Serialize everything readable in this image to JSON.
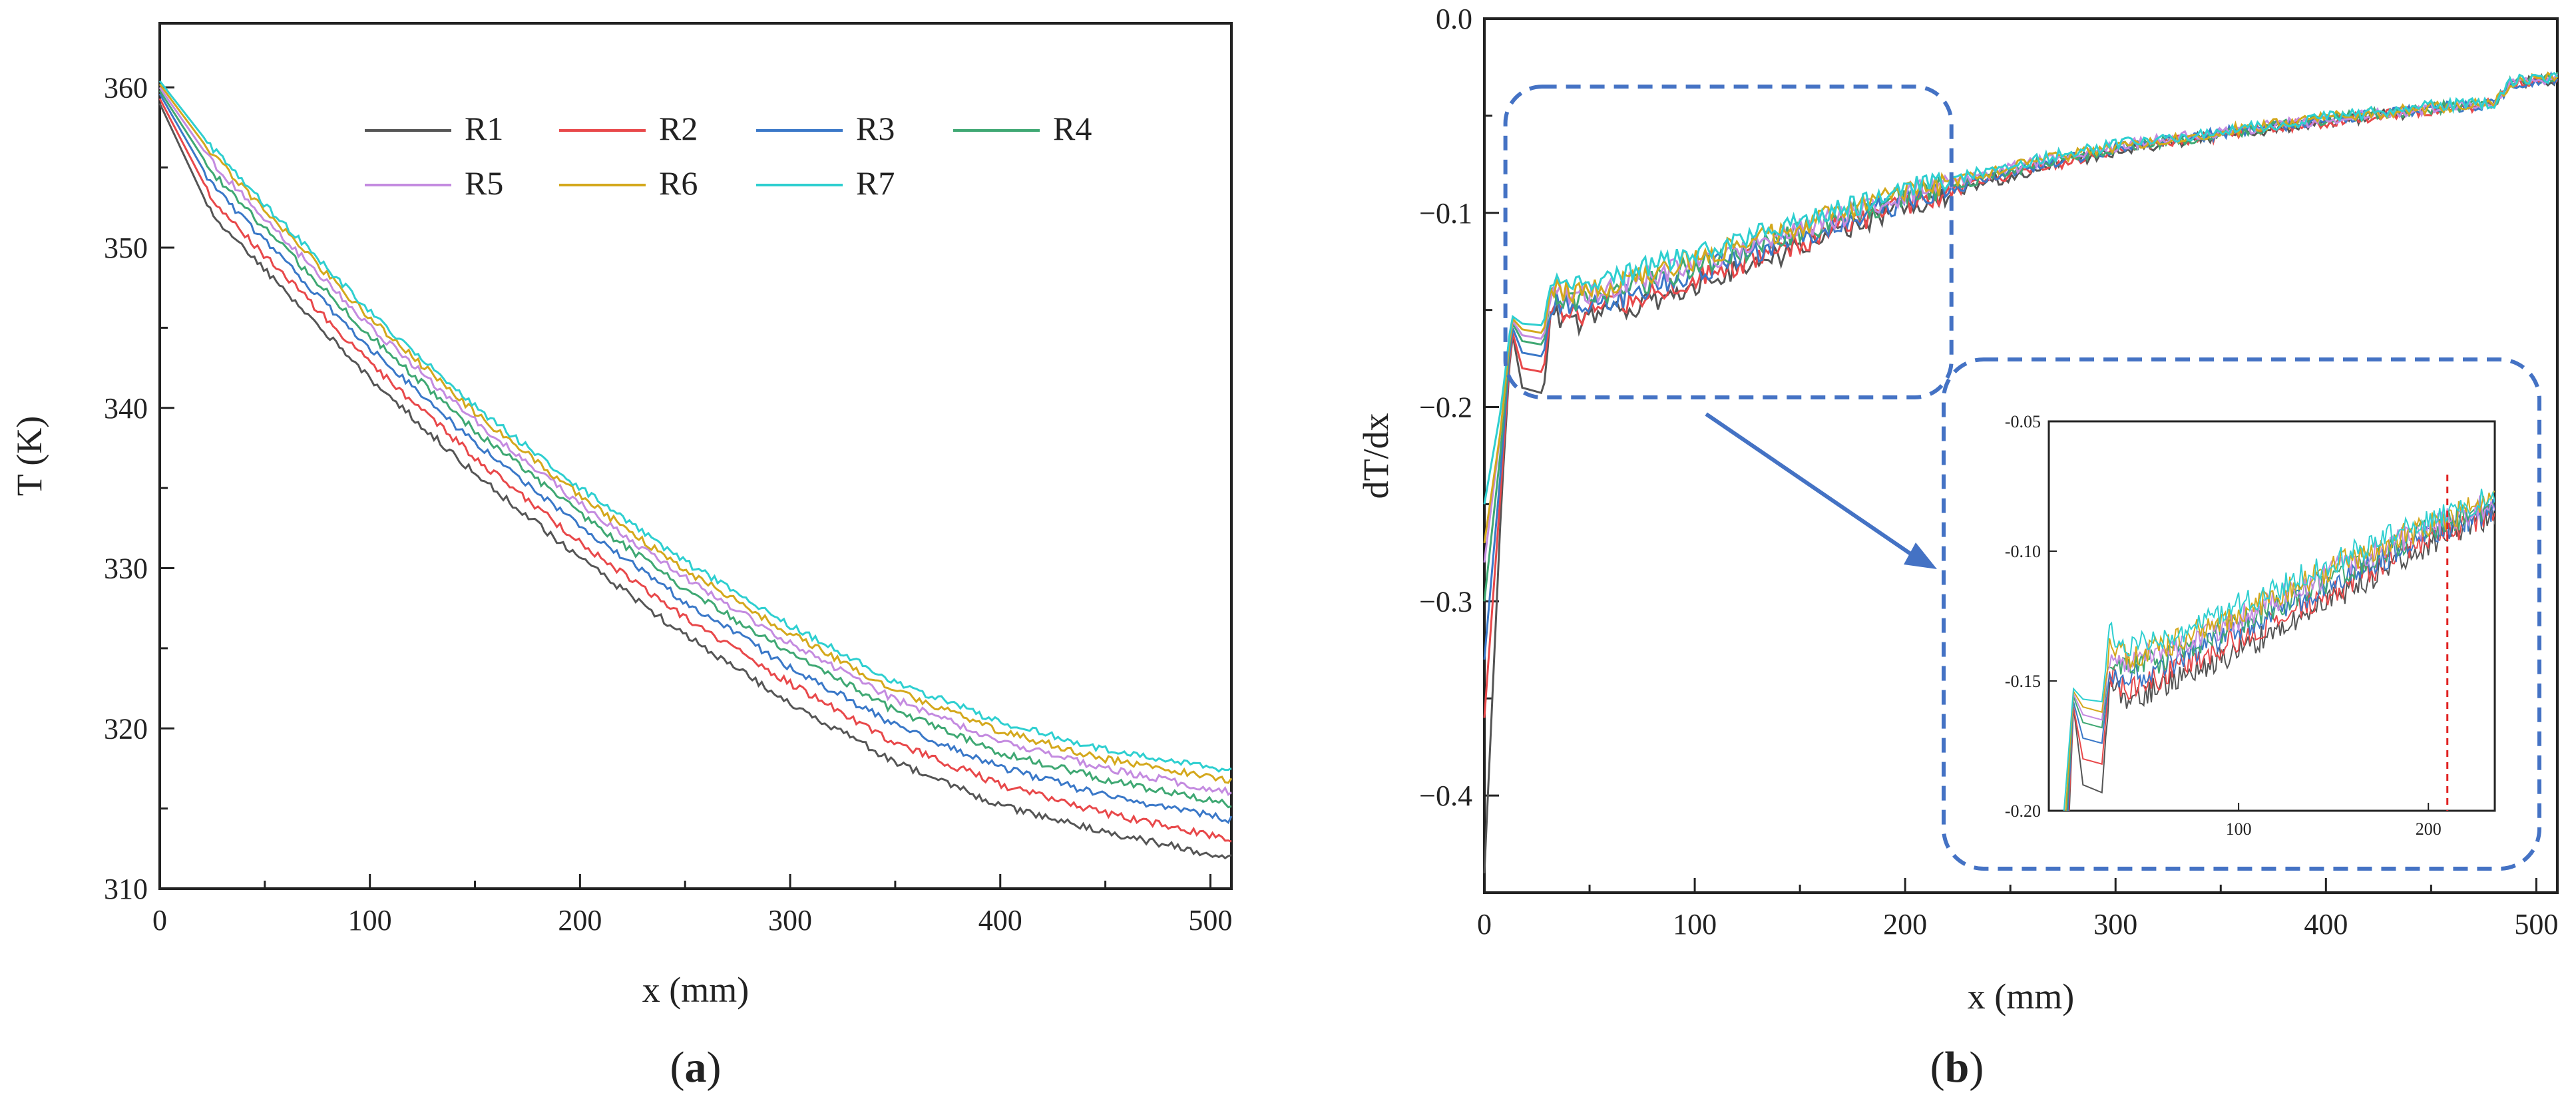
{
  "chart_data": [
    {
      "type": "line",
      "panel_label": "(a)",
      "panel_letter": "a",
      "xlabel": "x (mm)",
      "ylabel": "T (K)",
      "xlim": [
        0,
        510
      ],
      "ylim": [
        310,
        364
      ],
      "xticks": [
        0,
        100,
        200,
        300,
        400,
        500
      ],
      "yticks": [
        310,
        320,
        330,
        340,
        350,
        360
      ],
      "legend": "top-center",
      "x": [
        0,
        25,
        50,
        100,
        150,
        200,
        250,
        300,
        350,
        400,
        450,
        510
      ],
      "series": [
        {
          "name": "R1",
          "color": "#555555",
          "values": [
            359.0,
            352.0,
            348.6,
            341.8,
            335.9,
            330.6,
            325.8,
            321.6,
            317.9,
            315.2,
            313.5,
            311.9
          ]
        },
        {
          "name": "R2",
          "color": "#e8484a",
          "values": [
            359.3,
            353.0,
            349.5,
            342.8,
            336.9,
            331.6,
            326.9,
            322.8,
            319.1,
            316.5,
            314.7,
            313.1
          ]
        },
        {
          "name": "R3",
          "color": "#3a78c8",
          "values": [
            359.6,
            353.9,
            350.4,
            343.7,
            337.8,
            332.6,
            327.9,
            323.8,
            320.2,
            317.6,
            315.8,
            314.3
          ]
        },
        {
          "name": "R4",
          "color": "#3fa873",
          "values": [
            359.8,
            354.7,
            351.2,
            344.5,
            338.6,
            333.4,
            328.7,
            324.7,
            321.1,
            318.5,
            316.8,
            315.2
          ]
        },
        {
          "name": "R5",
          "color": "#c48be0",
          "values": [
            360.0,
            355.3,
            351.8,
            345.1,
            339.2,
            334.0,
            329.4,
            325.3,
            321.8,
            319.2,
            317.5,
            316.0
          ]
        },
        {
          "name": "R6",
          "color": "#d4a81c",
          "values": [
            360.2,
            355.8,
            352.3,
            345.6,
            339.7,
            334.5,
            329.9,
            325.9,
            322.4,
            319.8,
            318.1,
            316.7
          ]
        },
        {
          "name": "R7",
          "color": "#2ecfd0",
          "values": [
            360.4,
            356.2,
            352.7,
            346.0,
            340.1,
            335.0,
            330.4,
            326.4,
            322.9,
            320.4,
            318.7,
            317.4
          ]
        }
      ]
    },
    {
      "type": "line",
      "panel_label": "(b)",
      "panel_letter": "b",
      "xlabel": "x (mm)",
      "ylabel": "dT/dx",
      "xlim": [
        0,
        510
      ],
      "ylim": [
        -0.45,
        0.0
      ],
      "xticks": [
        0,
        100,
        200,
        300,
        400,
        500
      ],
      "yticks": [
        "0.0",
        "−0.1",
        "−0.2",
        "−0.3",
        "−0.4"
      ],
      "x": [
        0,
        8,
        13,
        18,
        28,
        32,
        40,
        60,
        100,
        150,
        200,
        250,
        300,
        350,
        400,
        450,
        480,
        488,
        510
      ],
      "series": [
        {
          "color": "#555555",
          "values": [
            -0.44,
            -0.25,
            -0.16,
            -0.19,
            -0.193,
            -0.15,
            -0.158,
            -0.152,
            -0.138,
            -0.118,
            -0.098,
            -0.081,
            -0.068,
            -0.06,
            -0.053,
            -0.047,
            -0.044,
            -0.034,
            -0.031
          ]
        },
        {
          "color": "#e8484a",
          "values": [
            -0.36,
            -0.24,
            -0.16,
            -0.18,
            -0.182,
            -0.148,
            -0.153,
            -0.148,
            -0.134,
            -0.115,
            -0.096,
            -0.08,
            -0.068,
            -0.06,
            -0.053,
            -0.047,
            -0.044,
            -0.034,
            -0.031
          ]
        },
        {
          "color": "#3a78c8",
          "values": [
            -0.33,
            -0.23,
            -0.158,
            -0.172,
            -0.174,
            -0.145,
            -0.149,
            -0.145,
            -0.131,
            -0.112,
            -0.094,
            -0.079,
            -0.067,
            -0.059,
            -0.052,
            -0.046,
            -0.044,
            -0.033,
            -0.031
          ]
        },
        {
          "color": "#3fa873",
          "values": [
            -0.3,
            -0.22,
            -0.156,
            -0.166,
            -0.168,
            -0.142,
            -0.146,
            -0.142,
            -0.128,
            -0.11,
            -0.092,
            -0.078,
            -0.067,
            -0.059,
            -0.052,
            -0.046,
            -0.044,
            -0.033,
            -0.03
          ]
        },
        {
          "color": "#c48be0",
          "values": [
            -0.28,
            -0.21,
            -0.155,
            -0.163,
            -0.165,
            -0.14,
            -0.143,
            -0.139,
            -0.126,
            -0.108,
            -0.091,
            -0.077,
            -0.066,
            -0.058,
            -0.052,
            -0.046,
            -0.043,
            -0.033,
            -0.03
          ]
        },
        {
          "color": "#d4a81c",
          "values": [
            -0.27,
            -0.21,
            -0.154,
            -0.16,
            -0.162,
            -0.138,
            -0.141,
            -0.137,
            -0.124,
            -0.106,
            -0.09,
            -0.076,
            -0.066,
            -0.058,
            -0.051,
            -0.046,
            -0.043,
            -0.033,
            -0.03
          ]
        },
        {
          "color": "#2ecfd0",
          "values": [
            -0.25,
            -0.2,
            -0.153,
            -0.157,
            -0.158,
            -0.132,
            -0.136,
            -0.134,
            -0.121,
            -0.104,
            -0.088,
            -0.075,
            -0.065,
            -0.058,
            -0.051,
            -0.045,
            -0.043,
            -0.032,
            -0.03
          ]
        }
      ],
      "highlight_region": {
        "xlim": [
          10,
          222
        ],
        "ylim": [
          -0.195,
          -0.035
        ]
      },
      "inset": {
        "xlim": [
          0,
          235
        ],
        "ylim": [
          -0.2,
          -0.05
        ],
        "xticks": [
          100,
          200
        ],
        "yticks": [
          "-0.05",
          "-0.10",
          "-0.15",
          "-0.20"
        ],
        "marker_x": 210,
        "marker_color": "#e02020"
      },
      "accent_color": "#4472c4"
    }
  ]
}
